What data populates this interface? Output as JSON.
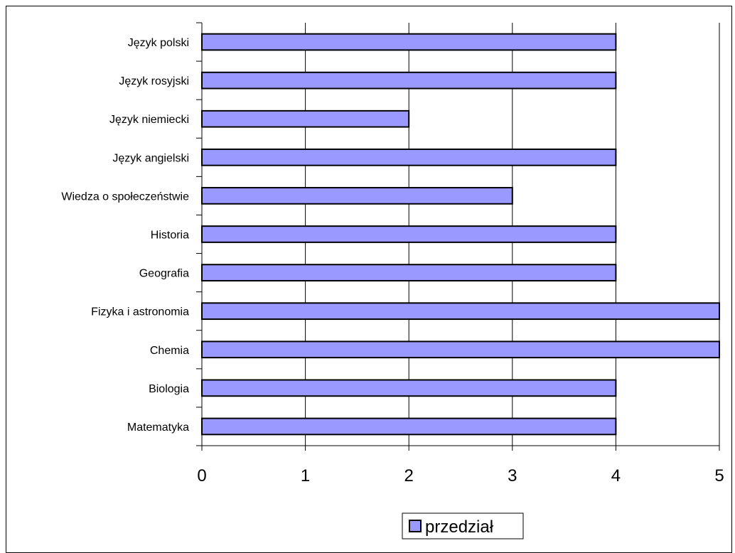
{
  "chart_data": {
    "type": "bar",
    "orientation": "horizontal",
    "categories": [
      "Matematyka",
      "Biologia",
      "Chemia",
      "Fizyka i astronomia",
      "Geografia",
      "Historia",
      "Wiedza o społeczeństwie",
      "Język angielski",
      "Język niemiecki",
      "Język rosyjski",
      "Język polski"
    ],
    "series": [
      {
        "name": "przedział",
        "values": [
          4,
          4,
          5,
          5,
          4,
          4,
          3,
          4,
          2,
          4,
          4
        ]
      }
    ],
    "xlim": [
      0,
      5
    ],
    "x_ticks": [
      "0",
      "1",
      "2",
      "3",
      "4",
      "5"
    ],
    "grid": "vertical",
    "legend_position": "bottom",
    "colors": {
      "bar_fill": "#9999ff",
      "bar_stroke": "#000000",
      "grid": "#000000"
    }
  }
}
